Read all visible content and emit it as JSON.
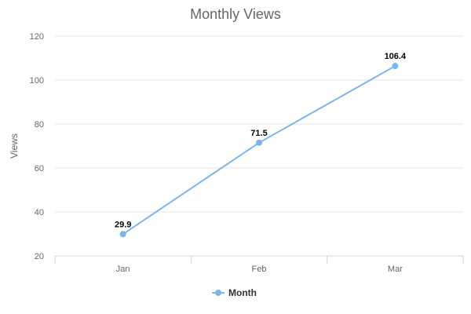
{
  "chart_data": {
    "type": "line",
    "title": "Monthly Views",
    "xlabel": "",
    "ylabel": "Views",
    "categories": [
      "Jan",
      "Feb",
      "Mar"
    ],
    "series": [
      {
        "name": "Month",
        "values": [
          29.9,
          71.5,
          106.4
        ],
        "color": "#7cb5ec"
      }
    ],
    "ylim": [
      20,
      120
    ],
    "yticks": [
      20,
      40,
      60,
      80,
      100,
      120
    ],
    "grid": true,
    "legend": "bottom-center"
  }
}
